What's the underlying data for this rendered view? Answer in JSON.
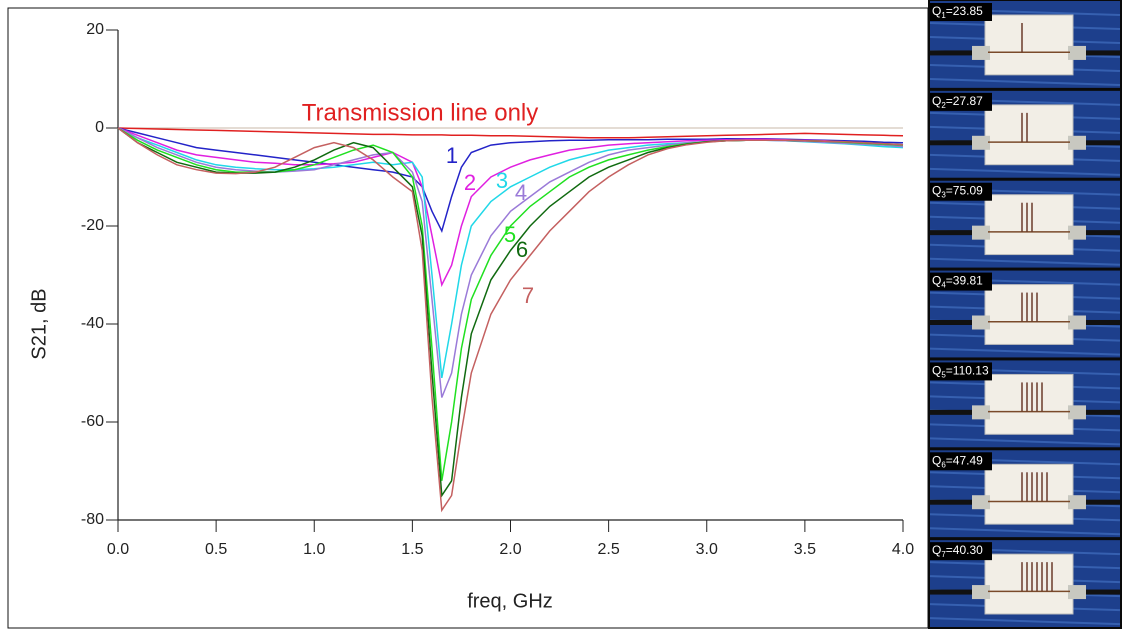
{
  "chart_data": {
    "type": "line",
    "xlabel": "freq, GHz",
    "ylabel": "S21, dB",
    "xlim": [
      0,
      4
    ],
    "ylim": [
      -80,
      20
    ],
    "xticks": [
      {
        "value": 0,
        "label": "0.0"
      },
      0.5,
      {
        "value": 1,
        "label": "1.0"
      },
      1.5,
      {
        "value": 2,
        "label": "2.0"
      },
      2.5,
      {
        "value": 3,
        "label": "3.0"
      },
      3.5,
      {
        "value": 4,
        "label": "4.0"
      }
    ],
    "yticks": [
      20,
      0,
      -20,
      -40,
      -60,
      -80
    ],
    "x": [
      0,
      0.1,
      0.2,
      0.3,
      0.4,
      0.5,
      0.6,
      0.7,
      0.8,
      0.9,
      1.0,
      1.1,
      1.2,
      1.3,
      1.4,
      1.5,
      1.55,
      1.6,
      1.65,
      1.7,
      1.75,
      1.8,
      1.9,
      2.0,
      2.1,
      2.2,
      2.3,
      2.4,
      2.5,
      2.6,
      2.7,
      2.8,
      2.9,
      3.0,
      3.1,
      3.2,
      3.3,
      3.4,
      3.5,
      3.6,
      3.7,
      3.8,
      3.9,
      4.0
    ],
    "series": [
      {
        "name": "Transmission line only",
        "color": "#e02020",
        "values": [
          0,
          -0.1,
          -0.2,
          -0.3,
          -0.4,
          -0.5,
          -0.6,
          -0.7,
          -0.8,
          -0.9,
          -1,
          -1.1,
          -1.2,
          -1.3,
          -1.3,
          -1.4,
          -1.4,
          -1.4,
          -1.4,
          -1.5,
          -1.5,
          -1.5,
          -1.6,
          -1.6,
          -1.7,
          -1.8,
          -1.9,
          -2,
          -2,
          -2,
          -1.9,
          -1.8,
          -1.7,
          -1.6,
          -1.5,
          -1.4,
          -1.3,
          -1.2,
          -1.1,
          -1.2,
          -1.3,
          -1.4,
          -1.5,
          -1.6
        ]
      },
      {
        "name": "1",
        "color": "#2323c8",
        "values": [
          0,
          -1,
          -2,
          -3,
          -4,
          -4.5,
          -5,
          -5.5,
          -6,
          -6.5,
          -7,
          -7.5,
          -8,
          -8.5,
          -9,
          -10,
          -12,
          -17,
          -21,
          -14,
          -8,
          -5,
          -3.5,
          -3,
          -2.8,
          -2.6,
          -2.5,
          -2.5,
          -2.4,
          -2.4,
          -2.4,
          -2.3,
          -2.3,
          -2.3,
          -2.2,
          -2.2,
          -2.2,
          -2.3,
          -2.4,
          -2.5,
          -2.6,
          -2.7,
          -2.9,
          -3
        ]
      },
      {
        "name": "2",
        "color": "#e020e0",
        "values": [
          0,
          -1.5,
          -3,
          -4.5,
          -5.5,
          -6,
          -6.5,
          -7,
          -7.2,
          -7.5,
          -7.5,
          -7.3,
          -7,
          -6,
          -5,
          -7,
          -12,
          -22,
          -32,
          -28,
          -20,
          -14,
          -10,
          -8,
          -6.5,
          -5.5,
          -4.5,
          -4,
          -3.5,
          -3.2,
          -3,
          -2.8,
          -2.6,
          -2.5,
          -2.4,
          -2.3,
          -2.3,
          -2.4,
          -2.5,
          -2.6,
          -2.8,
          -3,
          -3.2,
          -3.5
        ]
      },
      {
        "name": "3",
        "color": "#20d8e8",
        "values": [
          0,
          -2,
          -3.5,
          -5,
          -6.5,
          -7.5,
          -8,
          -8.3,
          -8.5,
          -8.5,
          -8.3,
          -8,
          -7.5,
          -7,
          -7.5,
          -7,
          -10,
          -30,
          -51,
          -40,
          -28,
          -20,
          -15,
          -12,
          -10,
          -8,
          -6.5,
          -5.5,
          -4.5,
          -4,
          -3.5,
          -3.2,
          -3,
          -2.8,
          -2.6,
          -2.5,
          -2.5,
          -2.6,
          -2.8,
          -3,
          -3.2,
          -3.5,
          -3.8,
          -4
        ]
      },
      {
        "name": "4",
        "color": "#9a7ad8",
        "values": [
          0,
          -2,
          -4,
          -5.5,
          -7,
          -8,
          -8.5,
          -8.8,
          -9,
          -8.8,
          -8.5,
          -7.5,
          -6.5,
          -5.5,
          -5,
          -9,
          -15,
          -35,
          -55,
          -50,
          -38,
          -30,
          -22,
          -17,
          -14,
          -11,
          -9,
          -7,
          -5.5,
          -4.5,
          -4,
          -3.5,
          -3,
          -2.8,
          -2.6,
          -2.5,
          -2.5,
          -2.6,
          -2.7,
          -2.9,
          -3.1,
          -3.3,
          -3.5,
          -3.8
        ]
      },
      {
        "name": "5",
        "color": "#20e020",
        "values": [
          0,
          -2.5,
          -4.5,
          -6,
          -7.5,
          -8.5,
          -9,
          -9,
          -9,
          -8.5,
          -7.5,
          -6,
          -4.5,
          -3.5,
          -5,
          -10,
          -20,
          -45,
          -72,
          -60,
          -45,
          -35,
          -26,
          -20,
          -16,
          -13,
          -10,
          -8,
          -6.5,
          -5.5,
          -4.5,
          -3.8,
          -3.2,
          -2.8,
          -2.6,
          -2.5,
          -2.5,
          -2.5,
          -2.6,
          -2.7,
          -2.9,
          -3.1,
          -3.3,
          -3.5
        ]
      },
      {
        "name": "6",
        "color": "#106a10",
        "values": [
          0,
          -3,
          -5,
          -7,
          -8,
          -9,
          -9.2,
          -9.2,
          -9,
          -8,
          -6.5,
          -4.5,
          -3,
          -4,
          -8,
          -12,
          -22,
          -50,
          -75,
          -72,
          -55,
          -42,
          -31,
          -25,
          -20,
          -16,
          -13,
          -10,
          -8,
          -6.5,
          -5,
          -4,
          -3.3,
          -2.8,
          -2.6,
          -2.5,
          -2.5,
          -2.5,
          -2.6,
          -2.7,
          -2.8,
          -3,
          -3.2,
          -3.4
        ]
      },
      {
        "name": "7",
        "color": "#c46060",
        "values": [
          0,
          -3,
          -5.5,
          -7.5,
          -8.5,
          -9.2,
          -9.3,
          -9,
          -8,
          -6,
          -4,
          -3,
          -4,
          -6.5,
          -10,
          -13,
          -25,
          -55,
          -78,
          -75,
          -62,
          -50,
          -38,
          -31,
          -26,
          -21,
          -17,
          -13,
          -10,
          -7.5,
          -5.5,
          -4.2,
          -3.4,
          -2.9,
          -2.6,
          -2.5,
          -2.5,
          -2.5,
          -2.6,
          -2.7,
          -2.8,
          -3,
          -3.2,
          -3.4
        ]
      }
    ]
  },
  "photos": [
    {
      "q": "Q",
      "sub": "1",
      "text": "=23.85"
    },
    {
      "q": "Q",
      "sub": "2",
      "text": "=27.87"
    },
    {
      "q": "Q",
      "sub": "3",
      "text": "=75.09"
    },
    {
      "q": "Q",
      "sub": "4",
      "text": "=39.81"
    },
    {
      "q": "Q",
      "sub": "5",
      "text": "=110.13"
    },
    {
      "q": "Q",
      "sub": "6",
      "text": "=47.49"
    },
    {
      "q": "Q",
      "sub": "7",
      "text": "=40.30"
    }
  ]
}
